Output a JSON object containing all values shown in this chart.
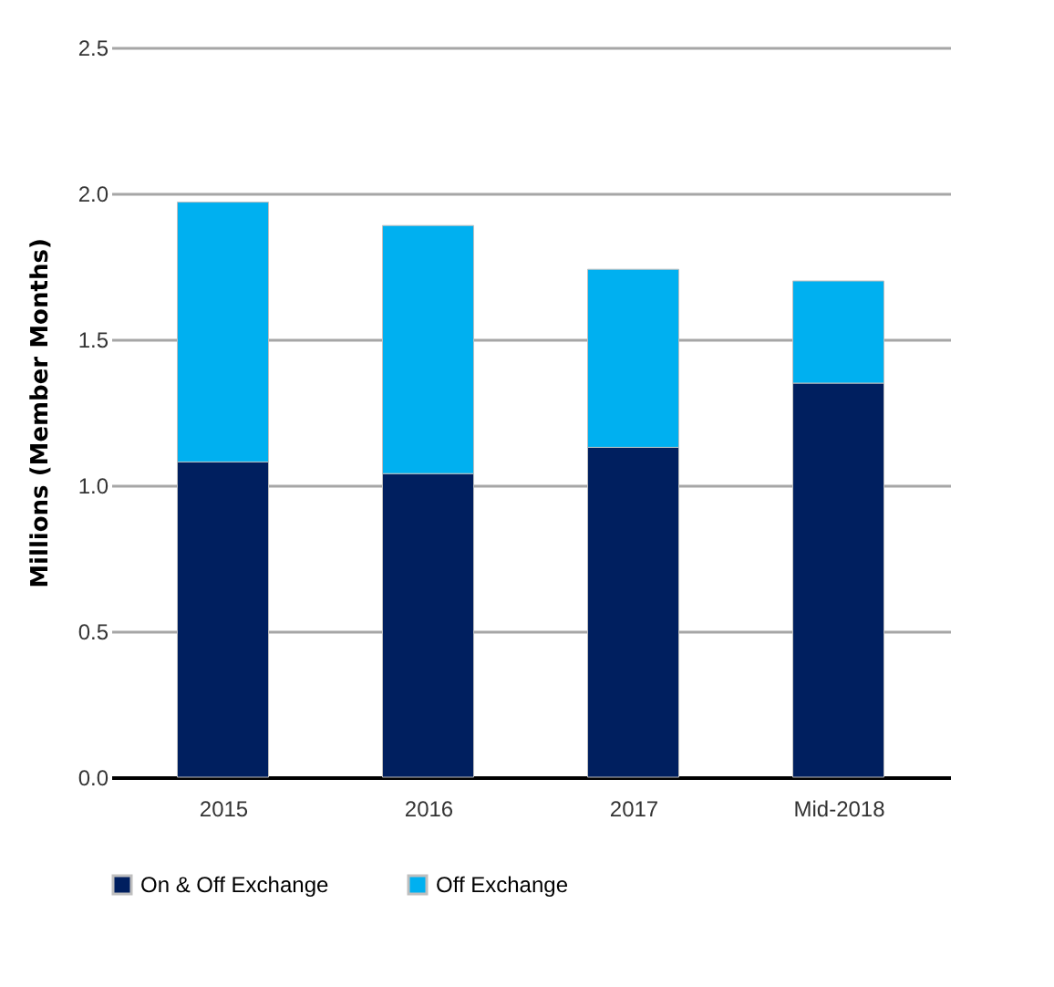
{
  "chart_data": {
    "type": "bar",
    "stacked": true,
    "ylabel": "Millions (Member Months)",
    "categories": [
      "2015",
      "2016",
      "2017",
      "Mid-2018"
    ],
    "series": [
      {
        "name": "On & Off Exchange",
        "color": "#001f5f",
        "values": [
          1.08,
          1.04,
          1.13,
          1.35
        ]
      },
      {
        "name": "Off Exchange",
        "color": "#00b0f0",
        "values": [
          0.89,
          0.85,
          0.61,
          0.35
        ]
      }
    ],
    "ylim": [
      0,
      2.5
    ],
    "yticks": [
      {
        "value": 0,
        "label": "0.0"
      },
      0.5,
      {
        "value": 1,
        "label": "1.0"
      },
      1.5,
      {
        "value": 2,
        "label": "2.0"
      },
      2.5
    ],
    "grid": "y",
    "legend": "bottom"
  }
}
